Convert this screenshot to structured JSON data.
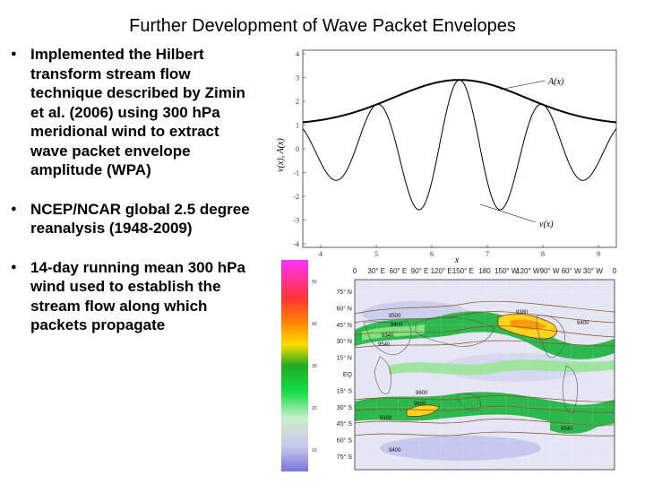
{
  "slide": {
    "title": "Further Development of Wave Packet Envelopes",
    "bullets": [
      "Implemented the Hilbert transform stream flow technique described by Zimin et al. (2006) using 300 hPa meridional wind to extract wave packet envelope amplitude (WPA)",
      "NCEP/NCAR global 2.5 degree reanalysis (1948-2009)",
      "14-day running mean 300 hPa wind used to establish the stream flow along which packets propagate"
    ]
  },
  "wave_figure": {
    "ylabel": "v(x), A(x)",
    "xlabel": "x",
    "y_ticks": [
      "4",
      "3",
      "2",
      "1",
      "0",
      "-1",
      "-2",
      "-3",
      "-4"
    ],
    "x_ticks": [
      "4",
      "5",
      "6",
      "7",
      "8",
      "9"
    ],
    "label_envelope": "A(x)",
    "label_wave": "v(x)"
  },
  "map_figure": {
    "lon_labels": [
      "0",
      "30° E",
      "60° E",
      "90° E",
      "120° E",
      "150° E",
      "180",
      "150° W",
      "120° W",
      "90° W",
      "60° W",
      "30° W",
      "0"
    ],
    "lat_labels": [
      "75° N",
      "60° N",
      "45° N",
      "30° N",
      "15° N",
      "EQ",
      "15° S",
      "30° S",
      "45° S",
      "60° S",
      "75° S"
    ],
    "colorbar_ticks": [
      "50",
      "40",
      "30",
      "20",
      "10"
    ],
    "contour_labels": [
      "9500",
      "9400",
      "9340",
      "9540",
      "9380",
      "9400",
      "9600",
      "9600",
      "9100",
      "9540",
      "9400"
    ]
  }
}
